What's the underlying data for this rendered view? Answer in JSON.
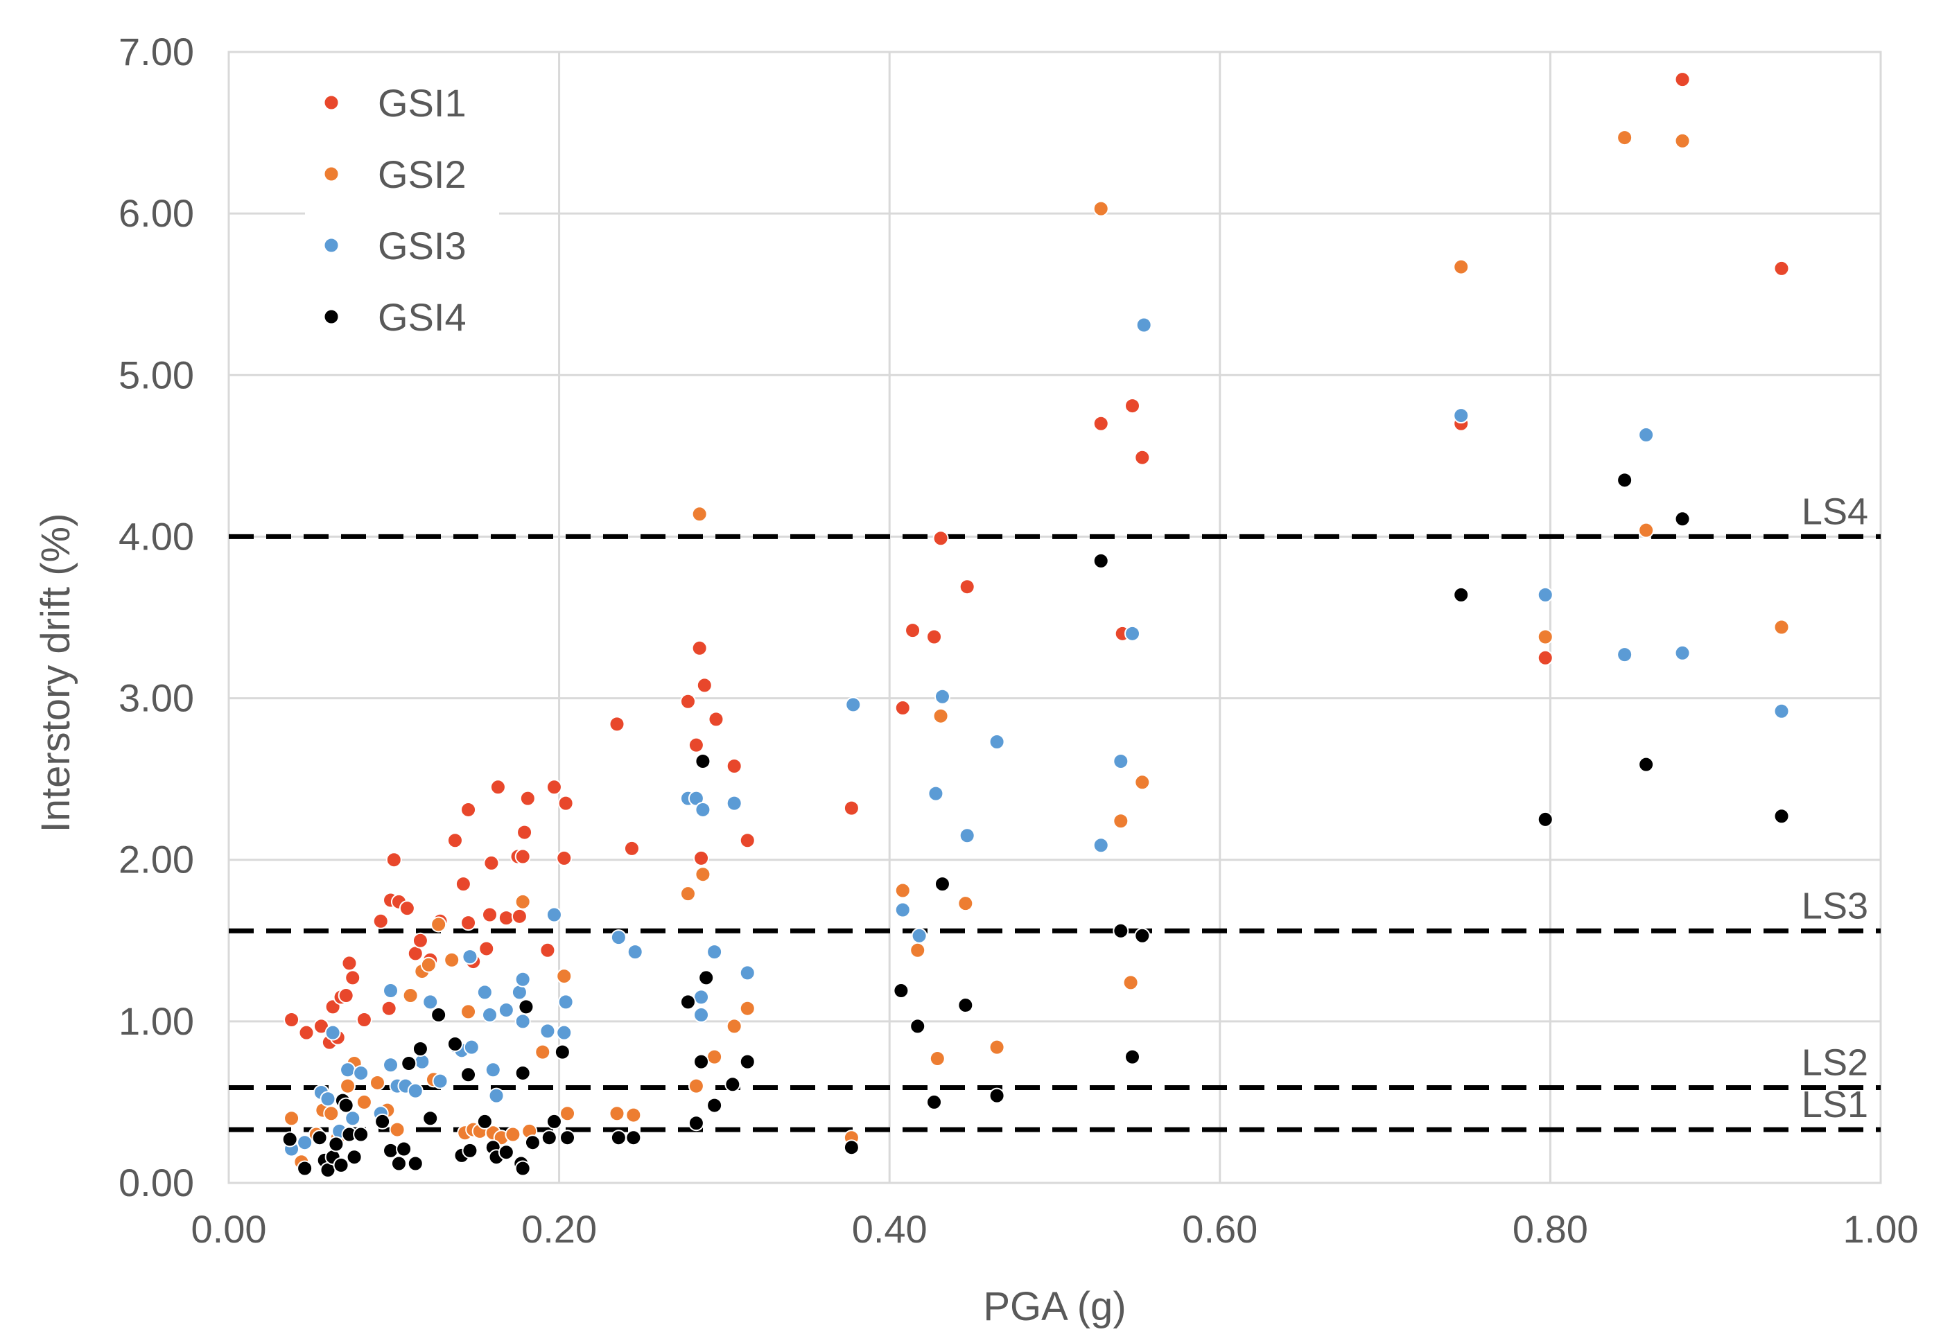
{
  "chart_data": {
    "type": "scatter",
    "title": "",
    "xlabel": "PGA (g)",
    "ylabel": "Interstory drift (%)",
    "xlim": [
      0,
      1.0
    ],
    "ylim": [
      0,
      7.0
    ],
    "xticks": [
      "0.00",
      "0.20",
      "0.40",
      "0.60",
      "0.80",
      "1.00"
    ],
    "yticks": [
      "0.00",
      "1.00",
      "2.00",
      "3.00",
      "4.00",
      "5.00",
      "6.00",
      "7.00"
    ],
    "grid": true,
    "legend_position": "top-left",
    "limit_states": [
      {
        "name": "LS1",
        "value": 0.33
      },
      {
        "name": "LS2",
        "value": 0.59
      },
      {
        "name": "LS3",
        "value": 1.56
      },
      {
        "name": "LS4",
        "value": 4.0
      }
    ],
    "series": [
      {
        "name": "GSI1",
        "color": "#e8472b",
        "points": [
          [
            0.038,
            1.01
          ],
          [
            0.047,
            0.93
          ],
          [
            0.056,
            0.97
          ],
          [
            0.061,
            0.87
          ],
          [
            0.063,
            1.09
          ],
          [
            0.066,
            0.9
          ],
          [
            0.068,
            1.15
          ],
          [
            0.071,
            1.16
          ],
          [
            0.073,
            1.36
          ],
          [
            0.075,
            1.27
          ],
          [
            0.082,
            1.01
          ],
          [
            0.092,
            1.62
          ],
          [
            0.097,
            1.08
          ],
          [
            0.098,
            1.75
          ],
          [
            0.1,
            2.0
          ],
          [
            0.103,
            1.74
          ],
          [
            0.108,
            1.7
          ],
          [
            0.113,
            1.42
          ],
          [
            0.116,
            1.5
          ],
          [
            0.122,
            1.38
          ],
          [
            0.128,
            1.62
          ],
          [
            0.137,
            2.12
          ],
          [
            0.142,
            1.85
          ],
          [
            0.145,
            1.61
          ],
          [
            0.148,
            1.37
          ],
          [
            0.145,
            2.31
          ],
          [
            0.156,
            1.45
          ],
          [
            0.158,
            1.66
          ],
          [
            0.159,
            1.98
          ],
          [
            0.163,
            2.45
          ],
          [
            0.168,
            1.64
          ],
          [
            0.175,
            2.02
          ],
          [
            0.176,
            1.65
          ],
          [
            0.178,
            2.02
          ],
          [
            0.179,
            2.17
          ],
          [
            0.181,
            2.38
          ],
          [
            0.193,
            1.44
          ],
          [
            0.197,
            2.45
          ],
          [
            0.203,
            2.01
          ],
          [
            0.204,
            2.35
          ],
          [
            0.235,
            2.84
          ],
          [
            0.244,
            2.07
          ],
          [
            0.278,
            2.98
          ],
          [
            0.283,
            2.71
          ],
          [
            0.285,
            3.31
          ],
          [
            0.286,
            2.01
          ],
          [
            0.288,
            3.08
          ],
          [
            0.295,
            2.87
          ],
          [
            0.306,
            2.58
          ],
          [
            0.314,
            2.12
          ],
          [
            0.377,
            2.32
          ],
          [
            0.408,
            2.94
          ],
          [
            0.414,
            3.42
          ],
          [
            0.427,
            3.38
          ],
          [
            0.431,
            3.99
          ],
          [
            0.447,
            3.69
          ],
          [
            0.528,
            4.7
          ],
          [
            0.541,
            3.4
          ],
          [
            0.547,
            4.81
          ],
          [
            0.553,
            4.49
          ],
          [
            0.746,
            4.7
          ],
          [
            0.797,
            3.25
          ],
          [
            0.88,
            6.83
          ],
          [
            0.94,
            5.66
          ]
        ]
      },
      {
        "name": "GSI2",
        "color": "#ed7d31",
        "points": [
          [
            0.038,
            0.4
          ],
          [
            0.044,
            0.13
          ],
          [
            0.053,
            0.3
          ],
          [
            0.057,
            0.45
          ],
          [
            0.062,
            0.43
          ],
          [
            0.066,
            0.28
          ],
          [
            0.072,
            0.6
          ],
          [
            0.076,
            0.74
          ],
          [
            0.082,
            0.5
          ],
          [
            0.09,
            0.62
          ],
          [
            0.096,
            0.45
          ],
          [
            0.102,
            0.33
          ],
          [
            0.11,
            1.16
          ],
          [
            0.117,
            1.31
          ],
          [
            0.121,
            1.35
          ],
          [
            0.124,
            0.64
          ],
          [
            0.127,
            1.6
          ],
          [
            0.135,
            1.38
          ],
          [
            0.143,
            0.31
          ],
          [
            0.145,
            1.06
          ],
          [
            0.148,
            0.33
          ],
          [
            0.152,
            0.32
          ],
          [
            0.16,
            0.31
          ],
          [
            0.165,
            0.28
          ],
          [
            0.172,
            0.3
          ],
          [
            0.178,
            1.74
          ],
          [
            0.182,
            0.32
          ],
          [
            0.19,
            0.81
          ],
          [
            0.203,
            1.28
          ],
          [
            0.205,
            0.43
          ],
          [
            0.235,
            0.43
          ],
          [
            0.245,
            0.42
          ],
          [
            0.278,
            1.79
          ],
          [
            0.283,
            0.6
          ],
          [
            0.287,
            1.91
          ],
          [
            0.294,
            0.78
          ],
          [
            0.285,
            4.14
          ],
          [
            0.306,
            0.97
          ],
          [
            0.314,
            1.08
          ],
          [
            0.377,
            0.28
          ],
          [
            0.408,
            1.81
          ],
          [
            0.417,
            1.44
          ],
          [
            0.429,
            0.77
          ],
          [
            0.431,
            2.89
          ],
          [
            0.446,
            1.73
          ],
          [
            0.465,
            0.84
          ],
          [
            0.528,
            6.03
          ],
          [
            0.54,
            2.24
          ],
          [
            0.546,
            1.24
          ],
          [
            0.553,
            2.48
          ],
          [
            0.746,
            5.67
          ],
          [
            0.797,
            3.38
          ],
          [
            0.845,
            6.47
          ],
          [
            0.858,
            4.04
          ],
          [
            0.88,
            6.45
          ],
          [
            0.94,
            3.44
          ]
        ]
      },
      {
        "name": "GSI3",
        "color": "#5b9bd5",
        "points": [
          [
            0.038,
            0.21
          ],
          [
            0.046,
            0.25
          ],
          [
            0.056,
            0.56
          ],
          [
            0.06,
            0.52
          ],
          [
            0.063,
            0.93
          ],
          [
            0.067,
            0.32
          ],
          [
            0.072,
            0.7
          ],
          [
            0.075,
            0.4
          ],
          [
            0.08,
            0.68
          ],
          [
            0.092,
            0.43
          ],
          [
            0.098,
            1.19
          ],
          [
            0.098,
            0.73
          ],
          [
            0.102,
            0.6
          ],
          [
            0.107,
            0.6
          ],
          [
            0.113,
            0.57
          ],
          [
            0.117,
            0.75
          ],
          [
            0.122,
            1.12
          ],
          [
            0.128,
            0.63
          ],
          [
            0.137,
            0.85
          ],
          [
            0.141,
            0.82
          ],
          [
            0.146,
            1.4
          ],
          [
            0.147,
            0.84
          ],
          [
            0.155,
            1.18
          ],
          [
            0.158,
            1.04
          ],
          [
            0.16,
            0.7
          ],
          [
            0.162,
            0.54
          ],
          [
            0.168,
            1.07
          ],
          [
            0.176,
            1.18
          ],
          [
            0.178,
            1.26
          ],
          [
            0.178,
            1.0
          ],
          [
            0.193,
            0.94
          ],
          [
            0.197,
            1.66
          ],
          [
            0.203,
            0.93
          ],
          [
            0.204,
            1.12
          ],
          [
            0.236,
            1.52
          ],
          [
            0.246,
            1.43
          ],
          [
            0.278,
            2.38
          ],
          [
            0.283,
            2.38
          ],
          [
            0.287,
            2.31
          ],
          [
            0.286,
            1.15
          ],
          [
            0.286,
            1.04
          ],
          [
            0.294,
            1.43
          ],
          [
            0.306,
            2.35
          ],
          [
            0.314,
            1.3
          ],
          [
            0.378,
            2.96
          ],
          [
            0.408,
            1.69
          ],
          [
            0.418,
            1.53
          ],
          [
            0.428,
            2.41
          ],
          [
            0.432,
            3.01
          ],
          [
            0.447,
            2.15
          ],
          [
            0.465,
            2.73
          ],
          [
            0.528,
            2.09
          ],
          [
            0.54,
            2.61
          ],
          [
            0.547,
            3.4
          ],
          [
            0.554,
            5.31
          ],
          [
            0.746,
            4.75
          ],
          [
            0.797,
            3.64
          ],
          [
            0.845,
            3.27
          ],
          [
            0.858,
            4.63
          ],
          [
            0.88,
            3.28
          ],
          [
            0.94,
            2.92
          ]
        ]
      },
      {
        "name": "GSI4",
        "color": "#000000",
        "points": [
          [
            0.037,
            0.27
          ],
          [
            0.046,
            0.09
          ],
          [
            0.055,
            0.28
          ],
          [
            0.058,
            0.14
          ],
          [
            0.06,
            0.08
          ],
          [
            0.063,
            0.16
          ],
          [
            0.065,
            0.24
          ],
          [
            0.068,
            0.11
          ],
          [
            0.069,
            0.51
          ],
          [
            0.071,
            0.48
          ],
          [
            0.073,
            0.3
          ],
          [
            0.076,
            0.16
          ],
          [
            0.08,
            0.3
          ],
          [
            0.093,
            0.38
          ],
          [
            0.098,
            0.2
          ],
          [
            0.103,
            0.12
          ],
          [
            0.106,
            0.21
          ],
          [
            0.109,
            0.74
          ],
          [
            0.113,
            0.12
          ],
          [
            0.116,
            0.83
          ],
          [
            0.122,
            0.4
          ],
          [
            0.127,
            1.04
          ],
          [
            0.137,
            0.86
          ],
          [
            0.141,
            0.17
          ],
          [
            0.145,
            0.67
          ],
          [
            0.146,
            0.2
          ],
          [
            0.155,
            0.38
          ],
          [
            0.16,
            0.22
          ],
          [
            0.162,
            0.16
          ],
          [
            0.168,
            0.19
          ],
          [
            0.177,
            0.12
          ],
          [
            0.178,
            0.09
          ],
          [
            0.178,
            0.68
          ],
          [
            0.18,
            1.09
          ],
          [
            0.184,
            0.25
          ],
          [
            0.194,
            0.28
          ],
          [
            0.197,
            0.38
          ],
          [
            0.202,
            0.81
          ],
          [
            0.205,
            0.28
          ],
          [
            0.236,
            0.28
          ],
          [
            0.245,
            0.28
          ],
          [
            0.278,
            1.12
          ],
          [
            0.283,
            0.37
          ],
          [
            0.286,
            0.75
          ],
          [
            0.287,
            2.61
          ],
          [
            0.289,
            1.27
          ],
          [
            0.294,
            0.48
          ],
          [
            0.305,
            0.61
          ],
          [
            0.314,
            0.75
          ],
          [
            0.377,
            0.22
          ],
          [
            0.407,
            1.19
          ],
          [
            0.417,
            0.97
          ],
          [
            0.427,
            0.5
          ],
          [
            0.432,
            1.85
          ],
          [
            0.446,
            1.1
          ],
          [
            0.465,
            0.54
          ],
          [
            0.528,
            3.85
          ],
          [
            0.54,
            1.56
          ],
          [
            0.547,
            0.78
          ],
          [
            0.553,
            1.53
          ],
          [
            0.746,
            3.64
          ],
          [
            0.797,
            2.25
          ],
          [
            0.845,
            4.35
          ],
          [
            0.858,
            2.59
          ],
          [
            0.88,
            4.11
          ],
          [
            0.94,
            2.27
          ]
        ]
      }
    ]
  }
}
